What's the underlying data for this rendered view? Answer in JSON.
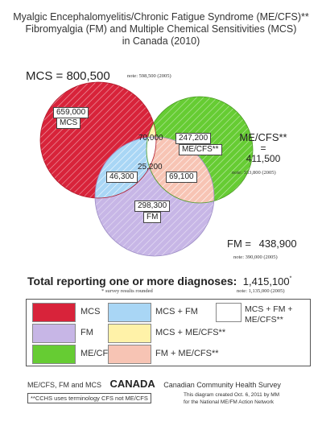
{
  "title": {
    "line1": "Myalgic Encephalomyelitis/Chronic Fatigue Syndrome (ME/CFS)**",
    "line2": "Fibromyalgia (FM) and Multiple Chemical Sensitivities (MCS)",
    "line3": "in Canada (2010)"
  },
  "totals": {
    "mcs_label": "MCS =",
    "mcs_value": "800,500",
    "mcs_note": "note: 598,500 (2005)",
    "mecfs_label": "ME/CFS**",
    "mecfs_eq": "=",
    "mecfs_value": "411,500",
    "mecfs_note": "note: 333,800 (2005)",
    "fm_label": "FM =",
    "fm_value": "438,900",
    "fm_note": "note: 390,000 (2005)"
  },
  "regions": {
    "mcs_only_value": "659,000",
    "mcs_only_label": "MCS",
    "mcs_mecfs": "70,000",
    "mecfs_only_value": "247,200",
    "mecfs_only_label": "ME/CFS**",
    "mcs_fm": "46,300",
    "all_three": "25,200",
    "fm_mecfs": "69,100",
    "fm_only_value": "298,300",
    "fm_only_label": "FM"
  },
  "summary": {
    "label": "Total reporting one or more diagnoses:",
    "value": "1,415,100",
    "value_mark": "*",
    "sub": "* survey results rounded",
    "note": "note: 1,135,000 (2005)"
  },
  "legend": [
    {
      "label": "MCS",
      "color": "#d8233a"
    },
    {
      "label": "FM",
      "color": "#c7b6e6"
    },
    {
      "label": "ME/CFS**",
      "color": "#66cc33"
    },
    {
      "label": "MCS + FM",
      "color": "#a9d6f5"
    },
    {
      "label": "MCS + ME/CFS**",
      "color": "#fff2a8"
    },
    {
      "label": "FM + ME/CFS**",
      "color": "#f7c4b4"
    },
    {
      "label": "MCS + FM + ME/CFS**",
      "color": "#ffffff"
    }
  ],
  "footer": {
    "left": "ME/CFS, FM and MCS",
    "country": "CANADA",
    "survey": "Canadian Community Health Survey",
    "terminology": "**CCHS uses terminology CFS not ME/CFS",
    "credit1": "This diagram created Oct. 6, 2011 by MM",
    "credit2": "for the National ME/FM Action Network"
  }
}
